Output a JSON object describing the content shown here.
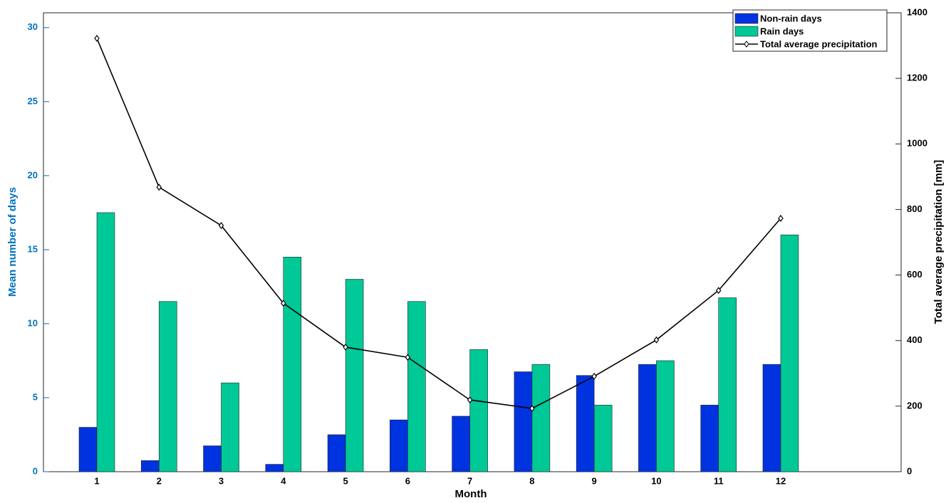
{
  "chart_data": {
    "type": "bar-line",
    "xlabel": "Month",
    "ylabel": "Mean number of days",
    "y2label": "Total average precipitation [mm]",
    "categories": [
      "1",
      "2",
      "3",
      "4",
      "5",
      "6",
      "7",
      "8",
      "9",
      "10",
      "11",
      "12"
    ],
    "series": [
      {
        "name": "Non-rain days",
        "color": "#0033e0",
        "type": "bar",
        "values": [
          3,
          0.75,
          1.75,
          0.5,
          2.5,
          3.5,
          3.75,
          6.75,
          6.5,
          7.25,
          4.5,
          7.25
        ]
      },
      {
        "name": "Rain days",
        "color": "#00c896",
        "type": "bar",
        "values": [
          17.5,
          11.5,
          6,
          14.5,
          13,
          11.5,
          8.25,
          7.25,
          4.5,
          7.5,
          11.75,
          16
        ]
      },
      {
        "name": "Total average precipitation",
        "color": "#000000",
        "type": "line",
        "axis": "y2",
        "values": [
          1322,
          868,
          751,
          514,
          380,
          349,
          219,
          193,
          291,
          402,
          553,
          773
        ]
      }
    ],
    "ylim": [
      0,
      31
    ],
    "yticks": [
      0,
      5,
      10,
      15,
      20,
      25,
      30
    ],
    "ycolor": "#0072bd",
    "y2lim": [
      0,
      1400
    ],
    "y2ticks": [
      0,
      200,
      400,
      600,
      800,
      1000,
      1200,
      1400
    ],
    "legend": "upper right"
  }
}
